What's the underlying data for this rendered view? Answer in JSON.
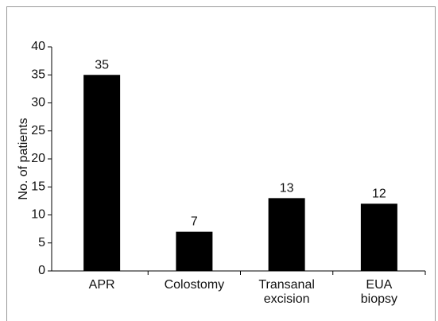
{
  "chart_data": {
    "type": "bar",
    "y_label": "No. of patients",
    "categories": [
      "APR",
      "Colostomy",
      "Transanal excision",
      "EUA biopsy"
    ],
    "values": [
      35,
      7,
      13,
      12
    ],
    "color": "#000000",
    "ylim": [
      0,
      40
    ],
    "yticks": [
      0,
      5,
      10,
      15,
      20,
      25,
      30,
      35,
      40
    ]
  }
}
